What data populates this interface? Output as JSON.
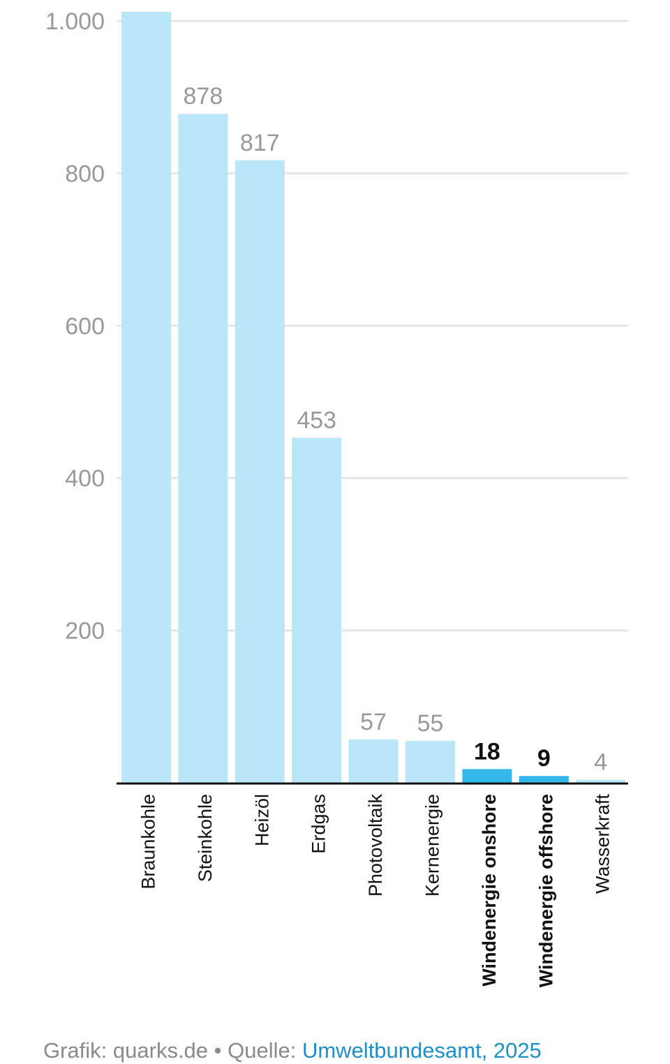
{
  "chart_data": {
    "type": "bar",
    "categories": [
      "Braunkohle",
      "Steinkohle",
      "Heizöl",
      "Erdgas",
      "Photovoltaik",
      "Kernenergie",
      "Windenergie onshore",
      "Windenergie offshore",
      "Wasserkraft"
    ],
    "values": [
      1012,
      878,
      817,
      453,
      57,
      55,
      18,
      9,
      4
    ],
    "value_labels": [
      "",
      "878",
      "817",
      "453",
      "57",
      "55",
      "18",
      "9",
      "4"
    ],
    "highlighted": [
      false,
      false,
      false,
      false,
      false,
      false,
      true,
      true,
      false
    ],
    "ylim": [
      0,
      1000
    ],
    "yticks": [
      200,
      400,
      600,
      800,
      1000
    ],
    "ytick_labels": [
      "200",
      "400",
      "600",
      "800",
      "1.000"
    ],
    "grid": true,
    "colors": {
      "bar": "#bae7f8",
      "highlight": "#33b8ea",
      "grid": "#e6e6e6",
      "axis": "#111111",
      "label": "#999999",
      "label_highlight": "#111111"
    }
  },
  "footer": {
    "prefix": "Grafik: quarks.de • Quelle: ",
    "source": "Umweltbundesamt, 2025"
  }
}
